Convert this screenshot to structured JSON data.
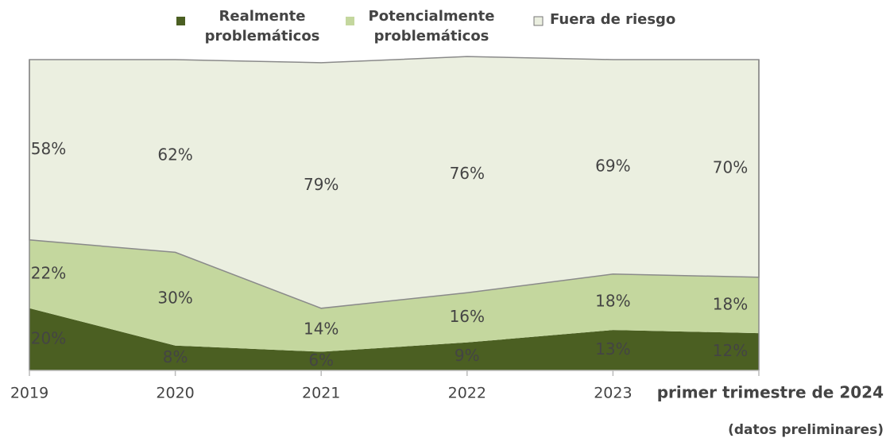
{
  "chart_data": {
    "type": "stacked_area",
    "categories": [
      "2019",
      "2020",
      "2021",
      "2022",
      "2023",
      "primer trimestre de 2024"
    ],
    "note": "(datos preliminares)",
    "ylim": [
      0,
      100
    ],
    "series": [
      {
        "name": "Realmente problemáticos",
        "color": "#4b5f22",
        "values": [
          20,
          8,
          6,
          9,
          13,
          12
        ],
        "value_labels": [
          "20%",
          "8%",
          "6%",
          "9%",
          "13%",
          "12%"
        ]
      },
      {
        "name": "Potencialmente problemáticos",
        "color": "#c4d79e",
        "values": [
          22,
          30,
          14,
          16,
          18,
          18
        ],
        "value_labels": [
          "22%",
          "30%",
          "14%",
          "16%",
          "18%",
          "18%"
        ]
      },
      {
        "name": "Fuera de riesgo",
        "color": "#ebefe0",
        "values": [
          58,
          62,
          79,
          76,
          69,
          70
        ],
        "value_labels": [
          "58%",
          "62%",
          "79%",
          "76%",
          "69%",
          "70%"
        ]
      }
    ]
  }
}
